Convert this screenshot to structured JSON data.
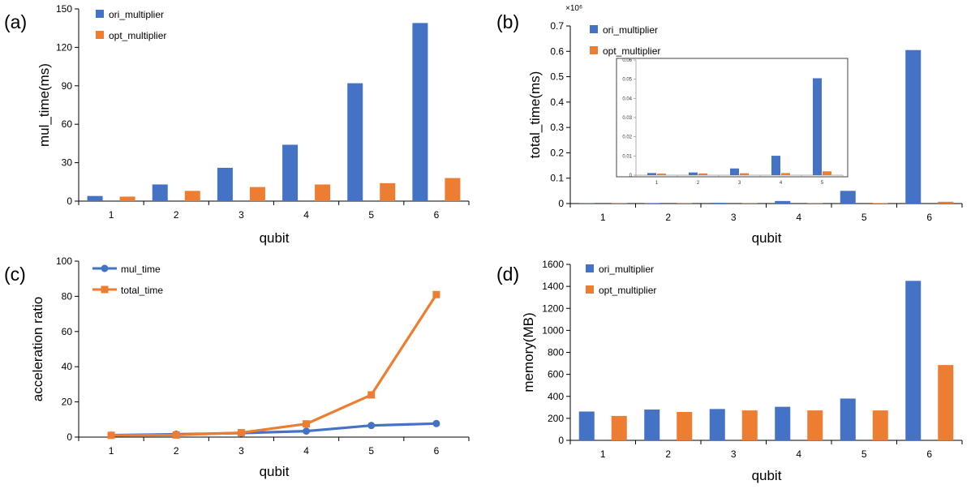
{
  "colors": {
    "blue": "#4472C4",
    "orange": "#ED7D31",
    "axis": "#000000",
    "inset_border": "#444444"
  },
  "chart_data": [
    {
      "id": "a",
      "panel_label": "(a)",
      "type": "bar",
      "categories": [
        "1",
        "2",
        "3",
        "4",
        "5",
        "6"
      ],
      "series": [
        {
          "name": "ori_multiplier",
          "values": [
            4,
            13,
            26,
            44,
            92,
            139
          ]
        },
        {
          "name": "opt_multiplier",
          "values": [
            3.5,
            8,
            11,
            13,
            14,
            18
          ]
        }
      ],
      "xlabel": "qubit",
      "ylabel": "mul_time(ms)",
      "ylim": [
        0,
        150
      ],
      "yticks": [
        0,
        30,
        60,
        90,
        120,
        150
      ],
      "legend": "top-left",
      "grid": false
    },
    {
      "id": "b",
      "panel_label": "(b)",
      "type": "bar",
      "categories": [
        "1",
        "2",
        "3",
        "4",
        "5",
        "6"
      ],
      "series": [
        {
          "name": "ori_multiplier",
          "values": [
            0.001,
            0.002,
            0.003,
            0.01,
            0.05,
            0.605
          ]
        },
        {
          "name": "opt_multiplier",
          "values": [
            0.001,
            0.001,
            0.001,
            0.001,
            0.002,
            0.007
          ]
        }
      ],
      "xlabel": "qubit",
      "ylabel": "total_time(ms)",
      "scale_note": "×10⁶",
      "ylim": [
        0,
        0.7
      ],
      "yticks": [
        0,
        0.1,
        0.2,
        0.3,
        0.4,
        0.5,
        0.6,
        0.7
      ],
      "legend": "top-left",
      "grid": false,
      "inset": {
        "categories": [
          "1",
          "2",
          "3",
          "4",
          "5"
        ],
        "series": [
          {
            "name": "ori_multiplier",
            "values": [
              0.0011,
              0.0014,
              0.0035,
              0.0101,
              0.0505
            ]
          },
          {
            "name": "opt_multiplier",
            "values": [
              0.0008,
              0.0009,
              0.001,
              0.0011,
              0.002
            ]
          }
        ],
        "ylim": [
          0,
          0.06
        ],
        "yticks": [
          0,
          0.01,
          0.02,
          0.03,
          0.04,
          0.05,
          0.06
        ]
      }
    },
    {
      "id": "c",
      "panel_label": "(c)",
      "type": "line",
      "x": [
        "1",
        "2",
        "3",
        "4",
        "5",
        "6"
      ],
      "series": [
        {
          "name": "mul_time",
          "values": [
            1.1,
            1.6,
            2.3,
            3.4,
            6.6,
            7.7
          ],
          "marker": "circle"
        },
        {
          "name": "total_time",
          "values": [
            1.0,
            1.2,
            2.5,
            7.5,
            24.0,
            81.0
          ],
          "marker": "square"
        }
      ],
      "xlabel": "qubit",
      "ylabel": "acceleration ratio",
      "ylim": [
        0,
        100
      ],
      "yticks": [
        0,
        20,
        40,
        60,
        80,
        100
      ],
      "legend": "top-left",
      "grid": false
    },
    {
      "id": "d",
      "panel_label": "(d)",
      "type": "bar",
      "categories": [
        "1",
        "2",
        "3",
        "4",
        "5",
        "6"
      ],
      "series": [
        {
          "name": "ori_multiplier",
          "values": [
            262,
            280,
            285,
            305,
            380,
            1450
          ]
        },
        {
          "name": "opt_multiplier",
          "values": [
            222,
            258,
            272,
            272,
            272,
            685
          ]
        }
      ],
      "xlabel": "qubit",
      "ylabel": "memory(MB)",
      "ylim": [
        0,
        1600
      ],
      "yticks": [
        0,
        200,
        400,
        600,
        800,
        1000,
        1200,
        1400,
        1600
      ],
      "legend": "top-left",
      "grid": false
    }
  ]
}
